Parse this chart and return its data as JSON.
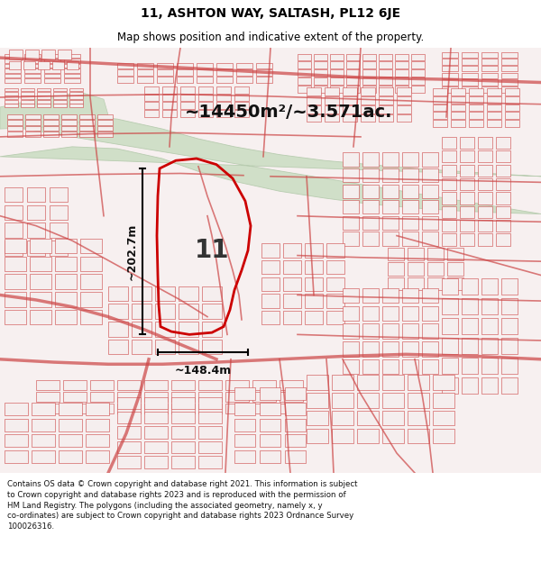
{
  "title": "11, ASHTON WAY, SALTASH, PL12 6JE",
  "subtitle": "Map shows position and indicative extent of the property.",
  "area_text": "~14450m²/~3.571ac.",
  "height_label": "~202.7m",
  "width_label": "~148.4m",
  "plot_number": "11",
  "footer_text": "Contains OS data © Crown copyright and database right 2021. This information is subject to Crown copyright and database rights 2023 and is reproduced with the permission of HM Land Registry. The polygons (including the associated geometry, namely x, y co-ordinates) are subject to Crown copyright and database rights 2023 Ordnance Survey 100026316.",
  "title_color": "#000000",
  "polygon_color": "#cc0000",
  "map_bg": "#f7f0f0",
  "road_fill": "#f2e8e8",
  "road_edge": "#cc4444",
  "green_color": "#d0dfc8",
  "green_edge": "#b8ccb0",
  "fig_width": 6.0,
  "fig_height": 6.25,
  "title_fontsize": 10,
  "subtitle_fontsize": 8.5,
  "area_fontsize": 14,
  "dim_fontsize": 9,
  "footer_fontsize": 6.2
}
